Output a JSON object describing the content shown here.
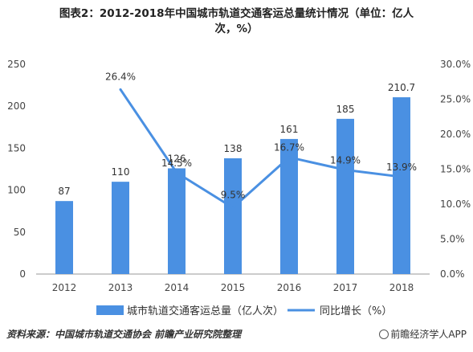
{
  "chart_data": {
    "type": "bar+line",
    "title_line1": "图表2：2012-2018年中国城市轨道交通客运总量统计情况（单位：亿人",
    "title_line2": "次，%）",
    "categories": [
      "2012",
      "2013",
      "2014",
      "2015",
      "2016",
      "2017",
      "2018"
    ],
    "series": [
      {
        "name": "城市轨道交通客运总量（亿人次）",
        "type": "bar",
        "axis": "left",
        "values": [
          87,
          110,
          126,
          138,
          161,
          185,
          210.7
        ],
        "labels": [
          "87",
          "110",
          "126",
          "138",
          "161",
          "185",
          "210.7"
        ],
        "color": "#4a90e2"
      },
      {
        "name": "同比增长（%）",
        "type": "line",
        "axis": "right",
        "values": [
          null,
          26.4,
          14.5,
          9.5,
          16.7,
          14.9,
          13.9
        ],
        "labels": [
          "",
          "26.4%",
          "14.5%",
          "9.5%",
          "16.7%",
          "14.9%",
          "13.9%"
        ],
        "color": "#4a90e2"
      }
    ],
    "left_axis": {
      "ticks": [
        "0",
        "50",
        "100",
        "150",
        "200",
        "250"
      ],
      "ylim": [
        0,
        250
      ]
    },
    "right_axis": {
      "ticks": [
        "0.0%",
        "5.0%",
        "10.0%",
        "15.0%",
        "20.0%",
        "25.0%",
        "30.0%"
      ],
      "ylim": [
        0,
        30
      ]
    },
    "grid": false,
    "legend_position": "bottom"
  },
  "footer": {
    "source": "资料来源：中国城市轨道交通协会 前瞻产业研究院整理",
    "brand": "前瞻经济学人APP"
  }
}
